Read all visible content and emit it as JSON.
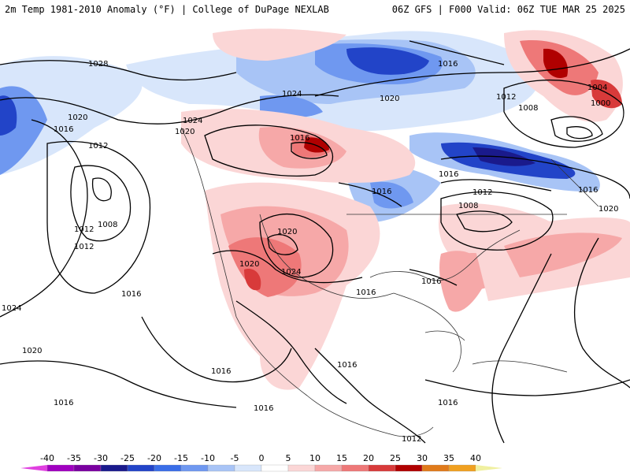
{
  "header": {
    "left_title": "2m Temp 1981-2010 Anomaly (°F) | College of DuPage NEXLAB",
    "right_title": "06Z GFS | F000 Valid: 06Z TUE MAR 25 2025"
  },
  "isobars": [
    {
      "label": "1028"
    },
    {
      "label": "1024"
    },
    {
      "label": "1020"
    },
    {
      "label": "1016"
    },
    {
      "label": "1012"
    },
    {
      "label": "1024"
    },
    {
      "label": "1020"
    },
    {
      "label": "1016"
    },
    {
      "label": "1012"
    },
    {
      "label": "1008"
    },
    {
      "label": "1004"
    },
    {
      "label": "1000"
    },
    {
      "label": "1020"
    },
    {
      "label": "1016"
    },
    {
      "label": "1012"
    },
    {
      "label": "1024"
    },
    {
      "label": "1020"
    },
    {
      "label": "1016"
    },
    {
      "label": "1016"
    },
    {
      "label": "1016"
    },
    {
      "label": "1012"
    },
    {
      "label": "1008"
    },
    {
      "label": "1016"
    },
    {
      "label": "1020"
    },
    {
      "label": "1008"
    },
    {
      "label": "1012"
    },
    {
      "label": "1016"
    },
    {
      "label": "1024"
    },
    {
      "label": "1020"
    },
    {
      "label": "1016"
    },
    {
      "label": "1020"
    },
    {
      "label": "1016"
    },
    {
      "label": "1016"
    },
    {
      "label": "1016"
    },
    {
      "label": "1012"
    },
    {
      "label": "1016"
    },
    {
      "label": "1016"
    }
  ],
  "colorbar": {
    "ticks": [
      "-40",
      "-35",
      "-30",
      "-25",
      "-20",
      "-15",
      "-10",
      "-5",
      "0",
      "5",
      "10",
      "15",
      "20",
      "25",
      "30",
      "35",
      "40"
    ],
    "colors": [
      "#e040e0",
      "#a000c0",
      "#7a00a0",
      "#1a1a8c",
      "#2244c8",
      "#3a6ee8",
      "#6f98f0",
      "#a8c4f6",
      "#d8e6fb",
      "#ffffff",
      "#fbd6d6",
      "#f6a8a8",
      "#ee7878",
      "#d83a3a",
      "#b00000",
      "#e07a1a",
      "#f0a020",
      "#f8d040",
      "#f0f0a0"
    ]
  }
}
